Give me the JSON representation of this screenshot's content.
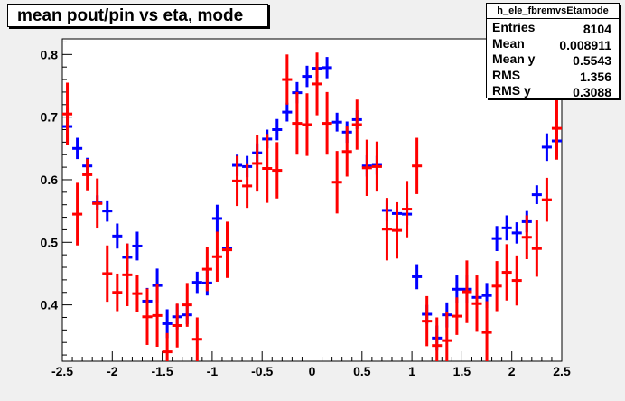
{
  "title": "mean pout/pin vs eta, mode",
  "stats": {
    "name": "h_ele_fbremvsEtamode",
    "rows": [
      {
        "label": "Entries",
        "value": "8104"
      },
      {
        "label": "Mean",
        "value": "0.008911"
      },
      {
        "label": "Mean y",
        "value": "0.5543"
      },
      {
        "label": "RMS",
        "value": "1.356"
      },
      {
        "label": "RMS y",
        "value": "0.3088"
      }
    ]
  },
  "chart_data": {
    "type": "scatter",
    "xlim": [
      -2.5,
      2.5
    ],
    "ylim": [
      0.31,
      0.825
    ],
    "xticks": [
      "-2.5",
      "-2",
      "-1.5",
      "-1",
      "-0.5",
      "0",
      "0.5",
      "1",
      "1.5",
      "2",
      "2.5"
    ],
    "yticks": [
      "0.4",
      "0.5",
      "0.6",
      "0.7",
      "0.8"
    ],
    "bin_half_width": 0.05,
    "series": [
      {
        "color": "#0000ff",
        "points": [
          [
            -2.45,
            0.685,
            0.03
          ],
          [
            -2.35,
            0.65,
            0.017
          ],
          [
            -2.25,
            0.622,
            0.013
          ],
          [
            -2.15,
            0.563,
            0.012
          ],
          [
            -2.05,
            0.55,
            0.017
          ],
          [
            -1.95,
            0.51,
            0.02
          ],
          [
            -1.85,
            0.476,
            0.022
          ],
          [
            -1.75,
            0.494,
            0.023
          ],
          [
            -1.65,
            0.406,
            0.021
          ],
          [
            -1.55,
            0.431,
            0.027
          ],
          [
            -1.45,
            0.37,
            0.023
          ],
          [
            -1.35,
            0.381,
            0.02
          ],
          [
            -1.25,
            0.384,
            0.015
          ],
          [
            -1.15,
            0.436,
            0.017
          ],
          [
            -1.05,
            0.435,
            0.02
          ],
          [
            -0.95,
            0.538,
            0.022
          ],
          [
            -0.85,
            0.49,
            0.017
          ],
          [
            -0.75,
            0.623,
            0.017
          ],
          [
            -0.65,
            0.621,
            0.017
          ],
          [
            -0.55,
            0.643,
            0.015
          ],
          [
            -0.45,
            0.665,
            0.015
          ],
          [
            -0.35,
            0.68,
            0.017
          ],
          [
            -0.25,
            0.708,
            0.015
          ],
          [
            -0.15,
            0.739,
            0.017
          ],
          [
            -0.05,
            0.765,
            0.017
          ],
          [
            0.05,
            0.778,
            0.015
          ],
          [
            0.15,
            0.779,
            0.017
          ],
          [
            0.25,
            0.692,
            0.015
          ],
          [
            0.35,
            0.676,
            0.017
          ],
          [
            0.45,
            0.696,
            0.015
          ],
          [
            0.55,
            0.622,
            0.017
          ],
          [
            0.65,
            0.623,
            0.015
          ],
          [
            0.75,
            0.551,
            0.017
          ],
          [
            0.85,
            0.546,
            0.017
          ],
          [
            0.95,
            0.545,
            0.017
          ],
          [
            1.05,
            0.445,
            0.02
          ],
          [
            1.15,
            0.385,
            0.015
          ],
          [
            1.25,
            0.347,
            0.02
          ],
          [
            1.35,
            0.384,
            0.02
          ],
          [
            1.45,
            0.425,
            0.022
          ],
          [
            1.55,
            0.425,
            0.022
          ],
          [
            1.65,
            0.412,
            0.02
          ],
          [
            1.75,
            0.415,
            0.02
          ],
          [
            1.85,
            0.506,
            0.02
          ],
          [
            1.95,
            0.523,
            0.02
          ],
          [
            2.05,
            0.515,
            0.017
          ],
          [
            2.15,
            0.533,
            0.017
          ],
          [
            2.25,
            0.576,
            0.015
          ],
          [
            2.35,
            0.652,
            0.022
          ],
          [
            2.45,
            0.662,
            0.025
          ]
        ]
      },
      {
        "color": "#ff0000",
        "points": [
          [
            -2.45,
            0.705,
            0.05
          ],
          [
            -2.35,
            0.545,
            0.05
          ],
          [
            -2.25,
            0.608,
            0.025
          ],
          [
            -2.15,
            0.562,
            0.04
          ],
          [
            -2.05,
            0.45,
            0.045
          ],
          [
            -1.95,
            0.42,
            0.03
          ],
          [
            -1.85,
            0.448,
            0.05
          ],
          [
            -1.75,
            0.418,
            0.03
          ],
          [
            -1.65,
            0.381,
            0.045
          ],
          [
            -1.55,
            0.383,
            0.05
          ],
          [
            -1.45,
            0.325,
            0.03
          ],
          [
            -1.35,
            0.367,
            0.035
          ],
          [
            -1.25,
            0.4,
            0.035
          ],
          [
            -1.15,
            0.345,
            0.035
          ],
          [
            -1.05,
            0.457,
            0.035
          ],
          [
            -0.95,
            0.477,
            0.04
          ],
          [
            -0.85,
            0.488,
            0.045
          ],
          [
            -0.75,
            0.598,
            0.04
          ],
          [
            -0.65,
            0.59,
            0.035
          ],
          [
            -0.55,
            0.626,
            0.045
          ],
          [
            -0.45,
            0.618,
            0.055
          ],
          [
            -0.35,
            0.615,
            0.045
          ],
          [
            -0.25,
            0.76,
            0.04
          ],
          [
            -0.15,
            0.69,
            0.05
          ],
          [
            -0.05,
            0.688,
            0.05
          ],
          [
            0.05,
            0.753,
            0.05
          ],
          [
            0.15,
            0.69,
            0.05
          ],
          [
            0.25,
            0.596,
            0.05
          ],
          [
            0.35,
            0.645,
            0.04
          ],
          [
            0.45,
            0.688,
            0.04
          ],
          [
            0.55,
            0.619,
            0.045
          ],
          [
            0.65,
            0.621,
            0.04
          ],
          [
            0.75,
            0.521,
            0.05
          ],
          [
            0.85,
            0.519,
            0.045
          ],
          [
            0.95,
            0.553,
            0.045
          ],
          [
            1.05,
            0.622,
            0.045
          ],
          [
            1.15,
            0.374,
            0.04
          ],
          [
            1.25,
            0.335,
            0.045
          ],
          [
            1.35,
            0.343,
            0.045
          ],
          [
            1.45,
            0.382,
            0.03
          ],
          [
            1.55,
            0.421,
            0.05
          ],
          [
            1.65,
            0.402,
            0.045
          ],
          [
            1.75,
            0.356,
            0.05
          ],
          [
            1.85,
            0.43,
            0.04
          ],
          [
            1.95,
            0.452,
            0.045
          ],
          [
            2.05,
            0.439,
            0.04
          ],
          [
            2.15,
            0.508,
            0.035
          ],
          [
            2.25,
            0.49,
            0.045
          ],
          [
            2.35,
            0.568,
            0.035
          ],
          [
            2.45,
            0.682,
            0.05
          ]
        ]
      }
    ]
  }
}
